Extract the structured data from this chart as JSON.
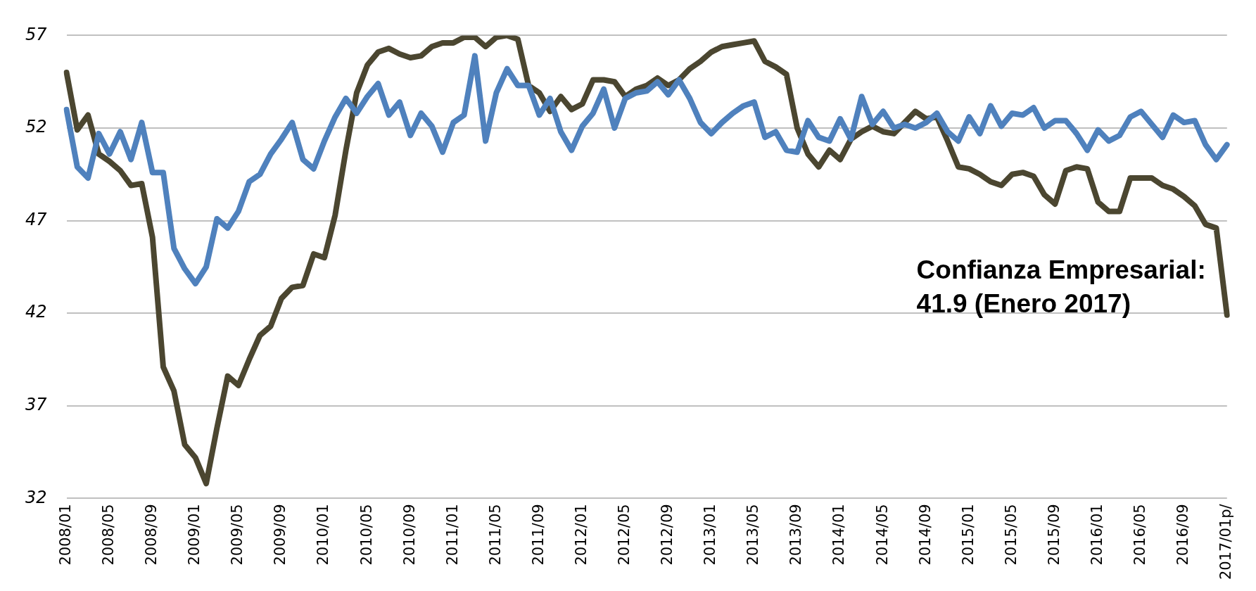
{
  "chart_data": {
    "type": "line",
    "categories": [
      "2008/01",
      null,
      null,
      null,
      "2008/05",
      null,
      null,
      null,
      "2008/09",
      null,
      null,
      null,
      "2009/01",
      null,
      null,
      null,
      "2009/05",
      null,
      null,
      null,
      "2009/09",
      null,
      null,
      null,
      "2010/01",
      null,
      null,
      null,
      "2010/05",
      null,
      null,
      null,
      "2010/09",
      null,
      null,
      null,
      "2011/01",
      null,
      null,
      null,
      "2011/05",
      null,
      null,
      null,
      "2011/09",
      null,
      null,
      null,
      "2012/01",
      null,
      null,
      null,
      "2012/05",
      null,
      null,
      null,
      "2012/09",
      null,
      null,
      null,
      "2013/01",
      null,
      null,
      null,
      "2013/05",
      null,
      null,
      null,
      "2013/09",
      null,
      null,
      null,
      "2014/01",
      null,
      null,
      null,
      "2014/05",
      null,
      null,
      null,
      "2014/09",
      null,
      null,
      null,
      "2015/01",
      null,
      null,
      null,
      "2015/05",
      null,
      null,
      null,
      "2015/09",
      null,
      null,
      null,
      "2016/01",
      null,
      null,
      null,
      "2016/05",
      null,
      null,
      null,
      "2016/09",
      null,
      null,
      null,
      "2017/01p/"
    ],
    "series": [
      {
        "color": "#4f81bd",
        "values": [
          53.0,
          49.9,
          49.3,
          51.7,
          50.6,
          51.8,
          50.3,
          52.3,
          49.6,
          49.6,
          45.5,
          44.4,
          43.6,
          44.5,
          47.1,
          46.6,
          47.5,
          49.1,
          49.5,
          50.6,
          51.4,
          52.3,
          50.3,
          49.8,
          51.3,
          52.6,
          53.6,
          52.8,
          53.7,
          54.4,
          52.7,
          53.4,
          51.6,
          52.8,
          52.1,
          50.7,
          52.3,
          52.7,
          55.9,
          51.3,
          53.9,
          55.2,
          54.3,
          54.3,
          52.7,
          53.6,
          51.8,
          50.8,
          52.1,
          52.8,
          54.1,
          52.0,
          53.6,
          53.9,
          54.0,
          54.5,
          53.8,
          54.6,
          53.6,
          52.3,
          51.7,
          52.3,
          52.8,
          53.2,
          53.4,
          51.5,
          51.8,
          50.8,
          50.7,
          52.4,
          51.5,
          51.3,
          52.5,
          51.4,
          53.7,
          52.2,
          52.9,
          52.0,
          52.2,
          52.0,
          52.3,
          52.8,
          51.8,
          51.3,
          52.6,
          51.7,
          53.2,
          52.1,
          52.8,
          52.7,
          53.1,
          52.0,
          52.4,
          52.4,
          51.7,
          50.8,
          51.9,
          51.3,
          51.6,
          52.6,
          52.9,
          52.2,
          51.5,
          52.7,
          52.3,
          52.4,
          51.1,
          50.3,
          51.1
        ]
      },
      {
        "color": "#4b4630",
        "values": [
          55.0,
          51.9,
          52.7,
          50.6,
          50.2,
          49.7,
          48.9,
          49.0,
          46.1,
          39.1,
          37.8,
          34.9,
          34.2,
          32.8,
          35.8,
          38.6,
          38.1,
          39.5,
          40.8,
          41.3,
          42.8,
          43.4,
          43.5,
          45.2,
          45.0,
          47.3,
          50.8,
          53.9,
          55.4,
          56.1,
          56.3,
          56.0,
          55.8,
          55.9,
          56.4,
          56.6,
          56.6,
          56.9,
          56.9,
          56.4,
          56.9,
          57.0,
          56.8,
          54.3,
          53.9,
          52.9,
          53.7,
          53.0,
          53.3,
          54.6,
          54.6,
          54.5,
          53.7,
          54.1,
          54.3,
          54.7,
          54.3,
          54.6,
          55.2,
          55.6,
          56.1,
          56.4,
          56.5,
          56.6,
          56.7,
          55.6,
          55.3,
          54.9,
          52.0,
          50.6,
          49.9,
          50.8,
          50.3,
          51.4,
          51.8,
          52.1,
          51.8,
          51.7,
          52.3,
          52.9,
          52.5,
          52.6,
          51.3,
          49.9,
          49.8,
          49.5,
          49.1,
          48.9,
          49.5,
          49.6,
          49.4,
          48.4,
          47.9,
          49.7,
          49.9,
          49.8,
          48.0,
          47.5,
          47.5,
          49.3,
          49.3,
          49.3,
          48.9,
          48.7,
          48.3,
          47.8,
          46.8,
          46.6,
          41.9
        ]
      }
    ],
    "ylim": [
      32,
      57
    ],
    "yticks": [
      32,
      37,
      42,
      47,
      52,
      57
    ],
    "grid": "y",
    "legend": false,
    "line_style": "solid",
    "annotations": [
      {
        "text": "Confianza Empresarial:\n41.9 (Enero 2017)",
        "x": "2017/01p/",
        "y": 41.9
      }
    ]
  }
}
